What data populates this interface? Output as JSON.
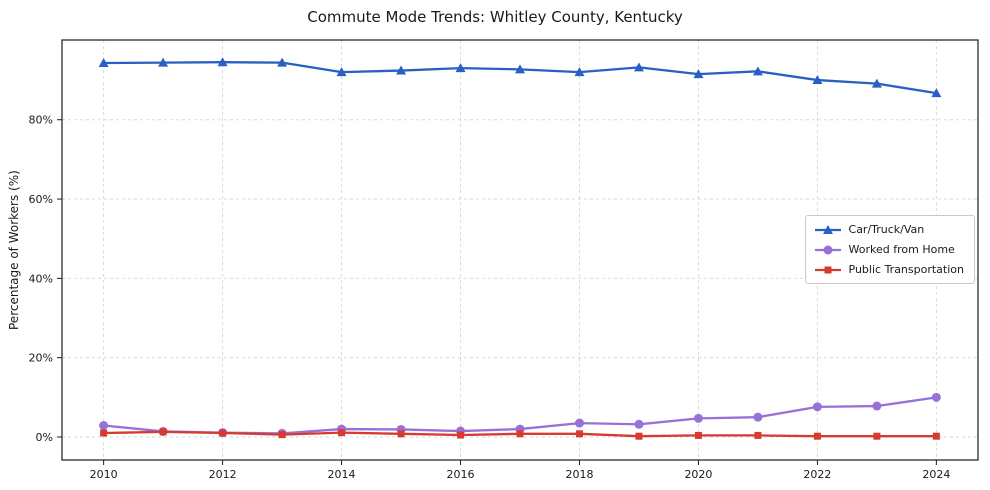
{
  "chart_data": {
    "type": "line",
    "title": "Commute Mode Trends: Whitley County, Kentucky",
    "ylabel": "Percentage of Workers (%)",
    "xlabel": "",
    "x": [
      2010,
      2011,
      2012,
      2013,
      2014,
      2015,
      2016,
      2017,
      2018,
      2019,
      2020,
      2021,
      2022,
      2023,
      2024
    ],
    "series": [
      {
        "name": "Car/Truck/Van",
        "color": "#2a5fc4",
        "marker": "triangle",
        "values": [
          94.3,
          94.4,
          94.5,
          94.4,
          92.0,
          92.4,
          93.0,
          92.7,
          92.0,
          93.2,
          91.5,
          92.2,
          90.0,
          89.1,
          86.7
        ]
      },
      {
        "name": "Worked from Home",
        "color": "#9770d8",
        "marker": "circle",
        "values": [
          2.9,
          1.4,
          1.1,
          0.9,
          2.0,
          1.9,
          1.5,
          2.0,
          3.5,
          3.2,
          4.7,
          5.0,
          7.6,
          7.8,
          10.0
        ]
      },
      {
        "name": "Public Transportation",
        "color": "#d63a30",
        "marker": "square",
        "values": [
          1.0,
          1.3,
          1.0,
          0.6,
          1.1,
          0.8,
          0.5,
          0.8,
          0.8,
          0.2,
          0.4,
          0.4,
          0.2,
          0.2,
          0.2
        ]
      }
    ],
    "xticks": [
      {
        "value": 2010,
        "label": "2010"
      },
      {
        "value": 2012,
        "label": "2012"
      },
      {
        "value": 2014,
        "label": "2014"
      },
      {
        "value": 2016,
        "label": "2016"
      },
      {
        "value": 2018,
        "label": "2018"
      },
      {
        "value": 2020,
        "label": "2020"
      },
      {
        "value": 2022,
        "label": "2022"
      },
      {
        "value": 2024,
        "label": "2024"
      }
    ],
    "yticks": [
      {
        "value": 0,
        "label": "0%"
      },
      {
        "value": 20,
        "label": "20%"
      },
      {
        "value": 40,
        "label": "40%"
      },
      {
        "value": 60,
        "label": "60%"
      },
      {
        "value": 80,
        "label": "80%"
      }
    ],
    "xlim": [
      2009.3,
      2024.7
    ],
    "ylim": [
      -5.8,
      100.1
    ],
    "grid": true,
    "legend_position": "center right"
  }
}
